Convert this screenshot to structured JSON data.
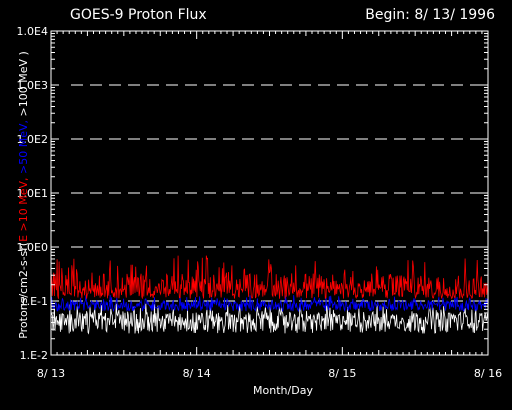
{
  "chart_data": {
    "type": "line",
    "title": "GOES-9 Proton Flux",
    "begin_label": "Begin: 8/ 13/ 1996",
    "xlabel": "Month/Day",
    "ylabel_parts": [
      {
        "text": "Protons/cm2-s-sr(",
        "color": "#ffffff"
      },
      {
        "text": "E >10 MeV, ",
        "color": "#ff0000"
      },
      {
        "text": ">50 MeV, ",
        "color": "#0000ff"
      },
      {
        "text": ">100 MeV )",
        "color": "#ffffff"
      }
    ],
    "x_ticks": [
      "8/ 13",
      "8/ 14",
      "8/ 15",
      "8/ 16"
    ],
    "xlim_days": [
      0,
      3
    ],
    "y_scale": "log",
    "ylim": [
      0.01,
      10000
    ],
    "y_ticks": [
      {
        "value": 0.01,
        "label": "1.E-2"
      },
      {
        "value": 0.1,
        "label": "1.E-1"
      },
      {
        "value": 1,
        "label": "1.0E0"
      },
      {
        "value": 10,
        "label": "1.0E1"
      },
      {
        "value": 100,
        "label": "1.0E2"
      },
      {
        "value": 1000,
        "label": "1.0E3"
      },
      {
        "value": 10000,
        "label": "1.0E4"
      }
    ],
    "background": "#000000",
    "axis_color": "#ffffff",
    "grid_dashed_at": [
      0.1,
      1,
      10,
      100,
      1000
    ],
    "series": [
      {
        "energy": ">100 MeV",
        "color": "#ffffff",
        "typical": 0.045,
        "low": 0.025,
        "high": 0.09
      },
      {
        "energy": ">50 MeV",
        "color": "#0000ff",
        "typical": 0.085,
        "low": 0.065,
        "high": 0.13
      },
      {
        "energy": ">10 MeV",
        "color": "#ff0000",
        "typical": 0.17,
        "low": 0.11,
        "high": 0.7
      }
    ]
  }
}
